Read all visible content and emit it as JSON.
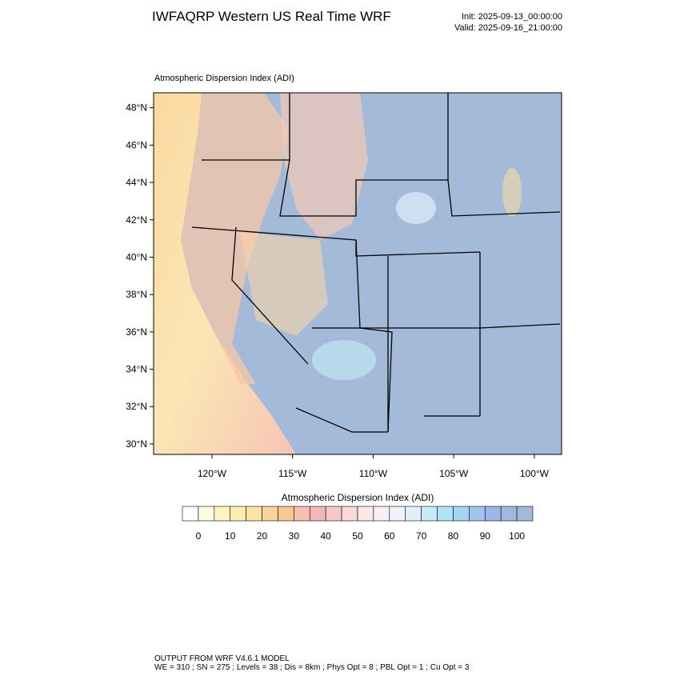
{
  "header": {
    "title": "IWFAQRP Western US Real Time WRF",
    "init": "Init: 2025-09-13_00:00:00",
    "valid": "Valid: 2025-09-16_21:00:00"
  },
  "map": {
    "label": "Atmospheric Dispersion Index   (ADI)",
    "xlim": [
      -123.62,
      -98.31
    ],
    "ylim": [
      29.44,
      48.8
    ],
    "xticks": [
      {
        "value": -120,
        "label": "120°W"
      },
      {
        "value": -115,
        "label": "115°W"
      },
      {
        "value": -110,
        "label": "110°W"
      },
      {
        "value": -105,
        "label": "105°W"
      },
      {
        "value": -100,
        "label": "100°W"
      }
    ],
    "yticks": [
      {
        "value": 30,
        "label": "30°N"
      },
      {
        "value": 32,
        "label": "32°N"
      },
      {
        "value": 34,
        "label": "34°N"
      },
      {
        "value": 36,
        "label": "36°N"
      },
      {
        "value": 38,
        "label": "38°N"
      },
      {
        "value": 40,
        "label": "40°N"
      },
      {
        "value": 42,
        "label": "42°N"
      },
      {
        "value": 44,
        "label": "44°N"
      },
      {
        "value": 46,
        "label": "46°N"
      },
      {
        "value": 48,
        "label": "48°N"
      }
    ]
  },
  "colorbar": {
    "title": "Atmospheric Dispersion Index  (ADI)",
    "lim": [
      -5,
      105
    ],
    "colors": [
      "#ffffff",
      "#fffde0",
      "#fff6c4",
      "#ffeeb0",
      "#fde3a0",
      "#fbd49a",
      "#f9c790",
      "#f6c0b0",
      "#f4b7b7",
      "#f8c8c8",
      "#fbd9d9",
      "#fde8e8",
      "#f8f0f6",
      "#f0f2fb",
      "#e0f0fb",
      "#c6ecfa",
      "#aee4f8",
      "#a3d6f5",
      "#a2c5f0",
      "#9fb7e8",
      "#a5b8dc",
      "#a3bbd8"
    ],
    "ticks": [
      0,
      10,
      20,
      30,
      40,
      50,
      60,
      70,
      80,
      90,
      100
    ]
  },
  "footer": {
    "line1": "OUTPUT FROM WRF V4.6.1 MODEL",
    "line2": "WE = 310 ; SN = 275 ; Levels = 38 ; Dis = 8km ; Phys Opt = 8 ; PBL Opt = 1 ; Cu Opt = 3"
  }
}
